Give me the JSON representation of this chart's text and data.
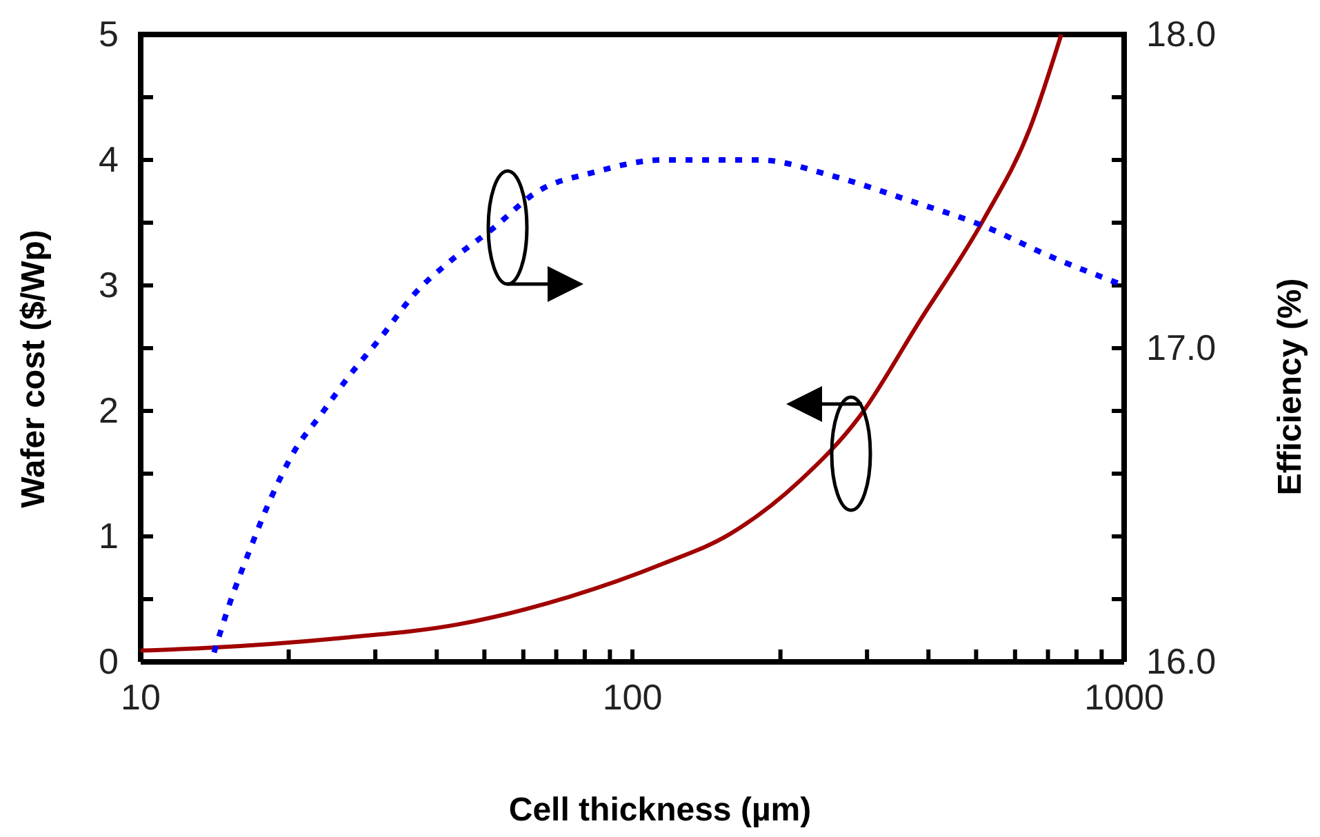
{
  "chart_data": {
    "type": "line",
    "xlabel": "Cell thickness (µm)",
    "ylabel": "Wafer cost ($/Wp)",
    "y2label": "Efficiency (%)",
    "log": "x",
    "xlim": [
      10,
      1000
    ],
    "xticks": [
      10,
      {
        "value": 20,
        "label": null
      },
      {
        "value": 30,
        "label": null
      },
      {
        "value": 40,
        "label": null
      },
      {
        "value": 50,
        "label": null
      },
      {
        "value": 60,
        "label": null
      },
      {
        "value": 70,
        "label": null
      },
      {
        "value": 80,
        "label": null
      },
      {
        "value": 90,
        "label": null
      },
      100,
      {
        "value": 200,
        "label": null
      },
      {
        "value": 300,
        "label": null
      },
      {
        "value": 400,
        "label": null
      },
      {
        "value": 500,
        "label": null
      },
      {
        "value": 600,
        "label": null
      },
      {
        "value": 700,
        "label": null
      },
      {
        "value": 800,
        "label": null
      },
      {
        "value": 900,
        "label": null
      },
      1000
    ],
    "ylim": [
      0,
      5
    ],
    "yticks": [
      0,
      {
        "value": 0.5,
        "label": null
      },
      1,
      {
        "value": 1.5,
        "label": null
      },
      2,
      {
        "value": 2.5,
        "label": null
      },
      3,
      {
        "value": 3.5,
        "label": null
      },
      4,
      {
        "value": 4.5,
        "label": null
      },
      5
    ],
    "y2lim": [
      16,
      18
    ],
    "y2ticks": [
      {
        "value": 16,
        "label": "16.0"
      },
      {
        "value": 16.2,
        "label": null
      },
      {
        "value": 16.4,
        "label": null
      },
      {
        "value": 16.6,
        "label": null
      },
      {
        "value": 16.8,
        "label": null
      },
      {
        "value": 17,
        "label": "17.0"
      },
      {
        "value": 17.2,
        "label": null
      },
      {
        "value": 17.4,
        "label": null
      },
      {
        "value": 17.6,
        "label": null
      },
      {
        "value": 17.8,
        "label": null
      },
      {
        "value": 18,
        "label": "18.0"
      }
    ],
    "grid": false,
    "series": [
      {
        "color": "#a00000",
        "line_style": "solid",
        "x": [
          10,
          13.4,
          25.5,
          44.4,
          74.6,
          115,
          158,
          220,
          289,
          383,
          517,
          643,
          745
        ],
        "values": [
          0.09,
          0.11,
          0.19,
          0.3,
          0.52,
          0.78,
          1.02,
          1.45,
          1.95,
          2.71,
          3.52,
          4.25,
          5.0
        ]
      },
      {
        "color": "#0000ff",
        "line_style": "dotted",
        "axis": "y2",
        "x": [
          14.1,
          15.2,
          16.6,
          18.5,
          20.5,
          23.3,
          26.5,
          31,
          35.9,
          42.8,
          51.9,
          64.2,
          83.2,
          115,
          181,
          254,
          367,
          517,
          714,
          1000
        ],
        "values": [
          16.03,
          16.19,
          16.35,
          16.53,
          16.67,
          16.79,
          16.91,
          17.04,
          17.17,
          17.28,
          17.38,
          17.5,
          17.56,
          17.6,
          17.6,
          17.55,
          17.47,
          17.39,
          17.29,
          17.2
        ]
      }
    ]
  }
}
